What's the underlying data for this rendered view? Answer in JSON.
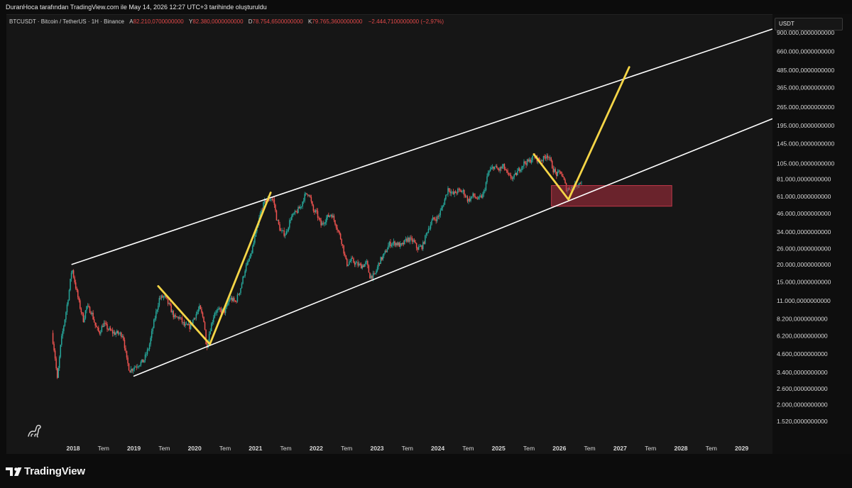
{
  "header": {
    "attribution": "DuranHoca tarafından TradingView.com ile May 14, 2026 12:27 UTC+3 tarihinde oluşturuldu"
  },
  "legend": {
    "symbol": "BTCUSDT · Bitcoin / TetherUS · 1H · Binance",
    "open_label": "A",
    "open_value": "82.210,0700000000",
    "high_label": "Y",
    "high_value": "82.380,0000000000",
    "low_label": "D",
    "low_value": "78.754,6500000000",
    "close_label": "K",
    "close_value": "79.765,3600000000",
    "change": "−2.444,7100000000 (−2,97%)"
  },
  "currency": "USDT",
  "brand": "TradingView",
  "colors": {
    "up": "#26a69a",
    "down": "#ef5350",
    "channel": "#ffffff",
    "projection": "#f5d547",
    "zone": "#b0303f",
    "price_down_text": "#e04848"
  },
  "chart_data": {
    "type": "candlestick",
    "scale": "log",
    "ylim": [
      1150,
      960000
    ],
    "xlim": [
      2017.6,
      2029.55
    ],
    "ytick_values": [
      1520,
      2000,
      2600,
      3400,
      4600,
      6200,
      8200,
      11000,
      15000,
      20000,
      26000,
      34000,
      46000,
      61000,
      81000,
      105000,
      145000,
      195000,
      265000,
      365000,
      485000,
      660000,
      900000
    ],
    "ytick_labels": [
      "1.520,0000000000",
      "2.000,0000000000",
      "2.600,0000000000",
      "3.400,0000000000",
      "4.600,0000000000",
      "6.200,0000000000",
      "8.200,0000000000",
      "11.000,0000000000",
      "15.000,0000000000",
      "20.000,0000000000",
      "26.000,0000000000",
      "34.000,0000000000",
      "46.000,0000000000",
      "61.000,0000000000",
      "81.000,0000000000",
      "105.000,0000000000",
      "145.000,0000000000",
      "195.000,0000000000",
      "265.000,0000000000",
      "365.000,0000000000",
      "485.000,0000000000",
      "660.000,0000000000",
      "900.000,0000000000"
    ],
    "xticks": [
      {
        "t": 2018.0,
        "label": "2018",
        "bold": true
      },
      {
        "t": 2018.5,
        "label": "Tem",
        "bold": false
      },
      {
        "t": 2019.0,
        "label": "2019",
        "bold": true
      },
      {
        "t": 2019.5,
        "label": "Tem",
        "bold": false
      },
      {
        "t": 2020.0,
        "label": "2020",
        "bold": true
      },
      {
        "t": 2020.5,
        "label": "Tem",
        "bold": false
      },
      {
        "t": 2021.0,
        "label": "2021",
        "bold": true
      },
      {
        "t": 2021.5,
        "label": "Tem",
        "bold": false
      },
      {
        "t": 2022.0,
        "label": "2022",
        "bold": true
      },
      {
        "t": 2022.5,
        "label": "Tem",
        "bold": false
      },
      {
        "t": 2023.0,
        "label": "2023",
        "bold": true
      },
      {
        "t": 2023.5,
        "label": "Tem",
        "bold": false
      },
      {
        "t": 2024.0,
        "label": "2024",
        "bold": true
      },
      {
        "t": 2024.5,
        "label": "Tem",
        "bold": false
      },
      {
        "t": 2025.0,
        "label": "2025",
        "bold": true
      },
      {
        "t": 2025.5,
        "label": "Tem",
        "bold": false
      },
      {
        "t": 2026.0,
        "label": "2026",
        "bold": true
      },
      {
        "t": 2026.5,
        "label": "Tem",
        "bold": false
      },
      {
        "t": 2027.0,
        "label": "2027",
        "bold": true
      },
      {
        "t": 2027.5,
        "label": "Tem",
        "bold": false
      },
      {
        "t": 2028.0,
        "label": "2028",
        "bold": true
      },
      {
        "t": 2028.5,
        "label": "Tem",
        "bold": false
      },
      {
        "t": 2029.0,
        "label": "2029",
        "bold": true
      }
    ],
    "price_path": [
      [
        2017.65,
        6500
      ],
      [
        2017.7,
        4500
      ],
      [
        2017.74,
        3000
      ],
      [
        2017.8,
        5600
      ],
      [
        2017.87,
        8500
      ],
      [
        2017.93,
        12500
      ],
      [
        2017.98,
        19000
      ],
      [
        2018.04,
        14000
      ],
      [
        2018.1,
        10500
      ],
      [
        2018.17,
        8000
      ],
      [
        2018.22,
        10000
      ],
      [
        2018.3,
        9200
      ],
      [
        2018.37,
        7200
      ],
      [
        2018.43,
        6500
      ],
      [
        2018.5,
        7600
      ],
      [
        2018.58,
        6900
      ],
      [
        2018.66,
        6500
      ],
      [
        2018.74,
        6450
      ],
      [
        2018.82,
        6300
      ],
      [
        2018.88,
        4200
      ],
      [
        2018.93,
        3500
      ],
      [
        2019.0,
        3700
      ],
      [
        2019.08,
        3900
      ],
      [
        2019.16,
        4100
      ],
      [
        2019.25,
        5200
      ],
      [
        2019.33,
        7800
      ],
      [
        2019.42,
        11500
      ],
      [
        2019.5,
        11800
      ],
      [
        2019.58,
        10200
      ],
      [
        2019.67,
        8300
      ],
      [
        2019.75,
        8400
      ],
      [
        2019.83,
        7300
      ],
      [
        2019.92,
        7200
      ],
      [
        2020.0,
        8500
      ],
      [
        2020.08,
        9800
      ],
      [
        2020.16,
        7800
      ],
      [
        2020.19,
        5000
      ],
      [
        2020.25,
        6800
      ],
      [
        2020.33,
        9200
      ],
      [
        2020.42,
        9400
      ],
      [
        2020.5,
        9250
      ],
      [
        2020.58,
        11500
      ],
      [
        2020.67,
        10800
      ],
      [
        2020.75,
        13300
      ],
      [
        2020.83,
        18500
      ],
      [
        2020.92,
        23000
      ],
      [
        2021.0,
        32000
      ],
      [
        2021.08,
        46000
      ],
      [
        2021.15,
        56000
      ],
      [
        2021.25,
        59000
      ],
      [
        2021.3,
        57000
      ],
      [
        2021.35,
        42000
      ],
      [
        2021.42,
        34000
      ],
      [
        2021.5,
        33000
      ],
      [
        2021.58,
        43000
      ],
      [
        2021.67,
        47000
      ],
      [
        2021.75,
        52000
      ],
      [
        2021.8,
        61000
      ],
      [
        2021.88,
        65000
      ],
      [
        2021.95,
        48000
      ],
      [
        2022.0,
        47000
      ],
      [
        2022.08,
        38000
      ],
      [
        2022.17,
        43000
      ],
      [
        2022.25,
        46000
      ],
      [
        2022.33,
        38000
      ],
      [
        2022.42,
        29000
      ],
      [
        2022.5,
        20000
      ],
      [
        2022.58,
        21500
      ],
      [
        2022.67,
        20000
      ],
      [
        2022.75,
        19500
      ],
      [
        2022.83,
        20500
      ],
      [
        2022.88,
        16500
      ],
      [
        2022.96,
        16600
      ],
      [
        2023.04,
        21000
      ],
      [
        2023.12,
        23500
      ],
      [
        2023.2,
        28000
      ],
      [
        2023.3,
        28500
      ],
      [
        2023.4,
        27000
      ],
      [
        2023.5,
        30500
      ],
      [
        2023.6,
        29200
      ],
      [
        2023.66,
        26000
      ],
      [
        2023.75,
        27000
      ],
      [
        2023.83,
        35000
      ],
      [
        2023.92,
        42000
      ],
      [
        2024.0,
        43000
      ],
      [
        2024.08,
        52000
      ],
      [
        2024.17,
        70000
      ],
      [
        2024.25,
        63000
      ],
      [
        2024.33,
        67000
      ],
      [
        2024.42,
        66000
      ],
      [
        2024.5,
        57000
      ],
      [
        2024.58,
        62000
      ],
      [
        2024.67,
        58000
      ],
      [
        2024.75,
        63000
      ],
      [
        2024.83,
        90000
      ],
      [
        2024.92,
        100000
      ],
      [
        2025.0,
        94000
      ],
      [
        2025.08,
        100000
      ],
      [
        2025.17,
        84000
      ],
      [
        2025.25,
        83000
      ],
      [
        2025.33,
        94000
      ],
      [
        2025.42,
        106000
      ],
      [
        2025.5,
        108000
      ],
      [
        2025.58,
        118000
      ],
      [
        2025.67,
        110000
      ],
      [
        2025.75,
        114000
      ],
      [
        2025.8,
        123000
      ],
      [
        2025.85,
        110000
      ],
      [
        2025.9,
        95000
      ],
      [
        2025.96,
        87000
      ],
      [
        2026.02,
        92000
      ],
      [
        2026.08,
        78000
      ],
      [
        2026.12,
        68000
      ],
      [
        2026.17,
        70000
      ],
      [
        2026.25,
        73000
      ],
      [
        2026.33,
        76000
      ],
      [
        2026.38,
        79765
      ]
    ],
    "channel_upper": [
      [
        2017.98,
        20000
      ],
      [
        2029.5,
        950000
      ]
    ],
    "channel_lower": [
      [
        2019.0,
        3200
      ],
      [
        2029.5,
        218000
      ]
    ],
    "projection_1": [
      [
        2019.4,
        14000
      ],
      [
        2020.25,
        5400
      ],
      [
        2021.25,
        65000
      ]
    ],
    "projection_2": [
      [
        2025.58,
        122000
      ],
      [
        2026.15,
        58000
      ],
      [
        2027.15,
        510000
      ]
    ],
    "demand_zone": {
      "t0": 2025.87,
      "t1": 2027.85,
      "y_low": 52000,
      "y_high": 73000
    }
  }
}
